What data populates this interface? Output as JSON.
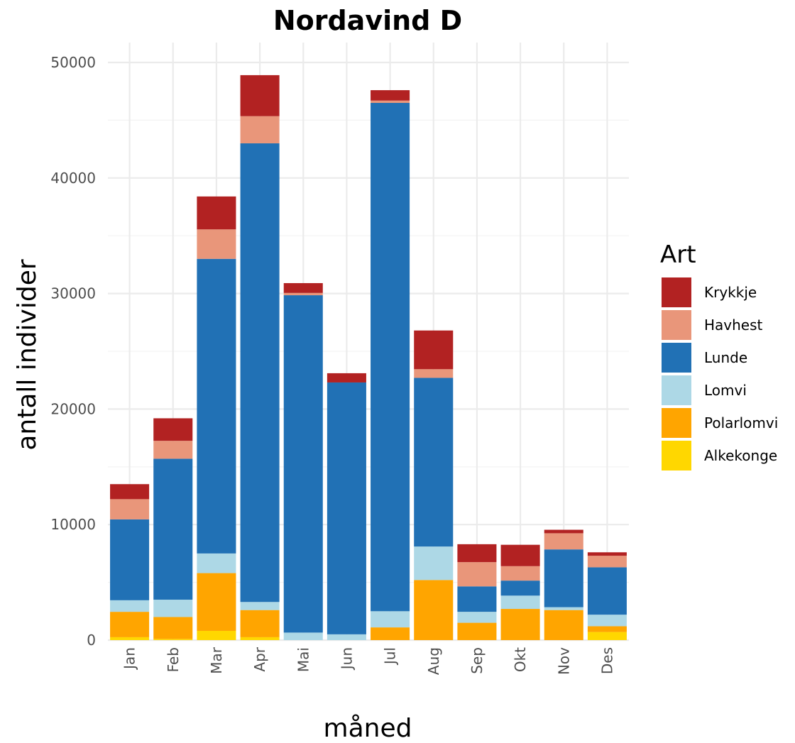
{
  "chart_data": {
    "type": "bar",
    "stacked": true,
    "title": "Nordavind D",
    "xlabel": "måned",
    "ylabel": "antall individer",
    "categories": [
      "Jan",
      "Feb",
      "Mar",
      "Apr",
      "Mai",
      "Jun",
      "Jul",
      "Aug",
      "Sep",
      "Okt",
      "Nov",
      "Des"
    ],
    "ylim": [
      0,
      50000
    ],
    "yticks": [
      0,
      10000,
      20000,
      30000,
      40000,
      50000
    ],
    "grid": true,
    "legend": {
      "title": "Art",
      "position": "right"
    },
    "series": [
      {
        "name": "Alkekonge",
        "color": "#FFD700",
        "values": [
          250,
          100,
          800,
          250,
          0,
          0,
          0,
          0,
          0,
          0,
          0,
          700
        ]
      },
      {
        "name": "Polarlomvi",
        "color": "#FFA500",
        "values": [
          2200,
          1900,
          5000,
          2350,
          0,
          0,
          1100,
          5200,
          1500,
          2700,
          2600,
          500
        ]
      },
      {
        "name": "Lomvi",
        "color": "#ADD8E6",
        "values": [
          1000,
          1500,
          1700,
          700,
          650,
          500,
          1400,
          2900,
          950,
          1150,
          250,
          1000
        ]
      },
      {
        "name": "Lunde",
        "color": "#2171B5",
        "values": [
          7000,
          12200,
          25500,
          39700,
          29200,
          21800,
          44000,
          14600,
          2200,
          1300,
          5000,
          4100
        ]
      },
      {
        "name": "Havhest",
        "color": "#E9967A",
        "values": [
          1750,
          1550,
          2550,
          2350,
          200,
          0,
          200,
          750,
          2100,
          1250,
          1400,
          1000
        ]
      },
      {
        "name": "Krykkje",
        "color": "#B22222",
        "values": [
          1300,
          1950,
          2850,
          3550,
          850,
          800,
          900,
          3350,
          1550,
          1850,
          300,
          300
        ]
      }
    ]
  }
}
